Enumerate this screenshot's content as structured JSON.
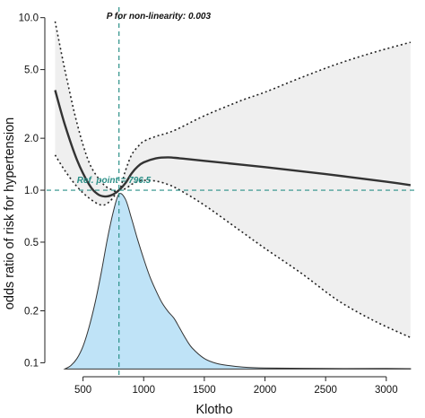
{
  "chart_data": {
    "type": "line",
    "title": "",
    "xlabel": "Klotho",
    "ylabel": "odds ratio of risk for hypertension",
    "y_scale": "log",
    "xlim": [
      200,
      3260
    ],
    "ylim": [
      0.085,
      11.5
    ],
    "x_ticks": [
      500,
      1000,
      1500,
      2000,
      2500,
      3000
    ],
    "x_tick_labels": [
      "500",
      "1000",
      "1500",
      "2000",
      "2500",
      "3000"
    ],
    "y_ticks": [
      0.1,
      0.2,
      0.5,
      1.0,
      2.0,
      5.0,
      10.0
    ],
    "y_tick_labels": [
      "0.1",
      "0.2",
      "0.5",
      "1.0",
      "2.0",
      "5.0",
      "10.0"
    ],
    "grid": false,
    "annotations": {
      "p_text": "P for non-linearity: 0.003",
      "ref_text": "Ref. point = 796.5",
      "ref_x": 796.5,
      "ref_y": 1.0
    },
    "series": [
      {
        "role": "estimate",
        "style": "solid",
        "x": [
          270,
          350,
          450,
          550,
          620,
          680,
          740,
          796.5,
          850,
          900,
          950,
          1000,
          1100,
          1200,
          1300,
          1500,
          2000,
          2500,
          3000,
          3200
        ],
        "y": [
          3.8,
          2.4,
          1.5,
          1.08,
          0.95,
          0.92,
          0.94,
          1.0,
          1.1,
          1.25,
          1.37,
          1.45,
          1.53,
          1.55,
          1.53,
          1.48,
          1.36,
          1.24,
          1.12,
          1.07
        ]
      },
      {
        "role": "upper_ci",
        "style": "dotted",
        "x": [
          270,
          350,
          450,
          550,
          650,
          720,
          796.5,
          850,
          900,
          950,
          1000,
          1100,
          1200,
          1300,
          1500,
          1800,
          2000,
          2300,
          2600,
          2900,
          3200
        ],
        "y": [
          9.5,
          5.0,
          2.45,
          1.45,
          1.12,
          1.02,
          1.0,
          1.3,
          1.6,
          1.78,
          1.92,
          2.05,
          2.15,
          2.3,
          2.7,
          3.3,
          3.7,
          4.5,
          5.4,
          6.3,
          7.2
        ]
      },
      {
        "role": "lower_ci",
        "style": "dotted",
        "x": [
          270,
          350,
          450,
          550,
          650,
          720,
          796.5,
          850,
          900,
          950,
          1000,
          1100,
          1200,
          1300,
          1500,
          1800,
          2000,
          2300,
          2600,
          2900,
          3200
        ],
        "y": [
          1.6,
          1.3,
          1.05,
          0.9,
          0.82,
          0.86,
          1.0,
          1.02,
          1.08,
          1.12,
          1.14,
          1.13,
          1.08,
          1.0,
          0.82,
          0.58,
          0.46,
          0.33,
          0.23,
          0.175,
          0.14
        ]
      },
      {
        "role": "density",
        "style": "filled",
        "x": [
          350,
          400,
          450,
          500,
          550,
          600,
          650,
          700,
          750,
          796.5,
          850,
          900,
          950,
          1000,
          1050,
          1100,
          1150,
          1200,
          1250,
          1300,
          1350,
          1400,
          1500,
          1600,
          1700,
          1800,
          2000,
          2500,
          3000,
          3200
        ],
        "density": [
          0.0,
          0.02,
          0.06,
          0.13,
          0.24,
          0.38,
          0.55,
          0.74,
          0.9,
          1.0,
          0.97,
          0.86,
          0.74,
          0.63,
          0.53,
          0.45,
          0.38,
          0.33,
          0.29,
          0.23,
          0.17,
          0.12,
          0.06,
          0.032,
          0.02,
          0.012,
          0.006,
          0.003,
          0.003,
          0.002
        ]
      }
    ],
    "colors": {
      "estimate": "#333333",
      "ci": "#222222",
      "ci_fill": "#efefef",
      "density_fill": "#bfe3f7",
      "density_stroke": "#333333",
      "ref_line": "#2a8f87",
      "ref_text": "#2a8f87",
      "p_text": "#111111"
    }
  }
}
